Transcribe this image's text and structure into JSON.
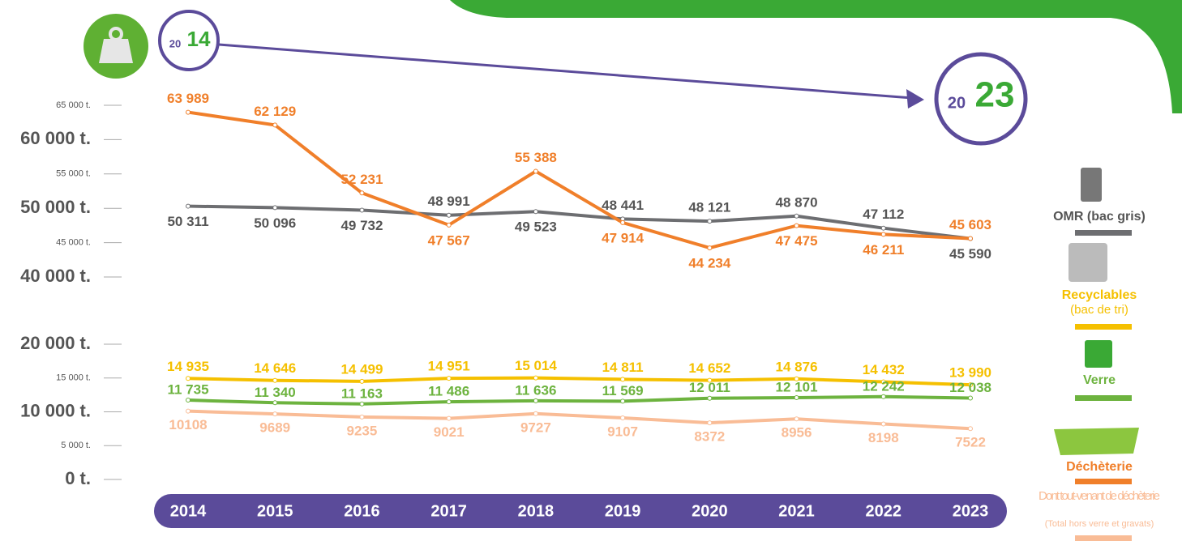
{
  "chart_data": {
    "type": "line",
    "from": {
      "prefix": "20",
      "suffix": "14"
    },
    "to": {
      "prefix": "20",
      "suffix": "23"
    },
    "categories": [
      "2014",
      "2015",
      "2016",
      "2017",
      "2018",
      "2019",
      "2020",
      "2021",
      "2022",
      "2023"
    ],
    "panels": [
      {
        "ylim": [
          40000,
          65000
        ],
        "yticks": [
          {
            "value": 40000,
            "label": "40 000 t."
          },
          {
            "value": 45000,
            "label": "45 000 t."
          },
          {
            "value": 50000,
            "label": "50 000 t."
          },
          {
            "value": 55000,
            "label": "55 000 t."
          },
          {
            "value": 60000,
            "label": "60 000 t."
          },
          {
            "value": 65000,
            "label": "65 000 t."
          }
        ],
        "series": [
          {
            "name": "OMR (bac gris)",
            "color": "#6d6e71",
            "values": [
              50311,
              50096,
              49732,
              48991,
              49523,
              48441,
              48121,
              48870,
              47112,
              45590
            ],
            "value_labels": [
              "50 311",
              "50 096",
              "49 732",
              "48 991",
              "49 523",
              "48 441",
              "48 121",
              "48 870",
              "47 112",
              "45 590"
            ]
          },
          {
            "name": "Déchèterie",
            "color": "#f07f2a",
            "values": [
              63989,
              62129,
              52231,
              47567,
              55388,
              47914,
              44234,
              47475,
              46211,
              45603
            ],
            "value_labels": [
              "63 989",
              "62 129",
              "52 231",
              "47 567",
              "55 388",
              "47 914",
              "44 234",
              "47 475",
              "46 211",
              "45 603"
            ]
          }
        ]
      },
      {
        "ylim": [
          0,
          20000
        ],
        "yticks": [
          {
            "value": 0,
            "label": "0 t."
          },
          {
            "value": 5000,
            "label": "5 000 t."
          },
          {
            "value": 10000,
            "label": "10 000 t."
          },
          {
            "value": 15000,
            "label": "15 000 t."
          },
          {
            "value": 20000,
            "label": "20 000 t."
          }
        ],
        "series": [
          {
            "name": "Recyclables",
            "note": "(bac de tri)",
            "color": "#f5c000",
            "values": [
              14935,
              14646,
              14499,
              14951,
              15014,
              14811,
              14652,
              14876,
              14432,
              13990
            ],
            "value_labels": [
              "14 935",
              "14 646",
              "14 499",
              "14 951",
              "15 014",
              "14 811",
              "14 652",
              "14 876",
              "14 432",
              "13 990"
            ]
          },
          {
            "name": "Verre",
            "color": "#6db33f",
            "values": [
              11735,
              11340,
              11163,
              11486,
              11636,
              11569,
              12011,
              12101,
              12242,
              12038
            ],
            "value_labels": [
              "11 735",
              "11 340",
              "11 163",
              "11 486",
              "11 636",
              "11 569",
              "12 011",
              "12 101",
              "12 242",
              "12 038"
            ]
          },
          {
            "name": "Dont tout-venant de déchèterie",
            "note": "(Total hors verre et gravats)",
            "color": "#f9bc96",
            "values": [
              10108,
              9689,
              9235,
              9021,
              9727,
              9107,
              8372,
              8956,
              8198,
              7522
            ]
          }
        ]
      }
    ]
  }
}
